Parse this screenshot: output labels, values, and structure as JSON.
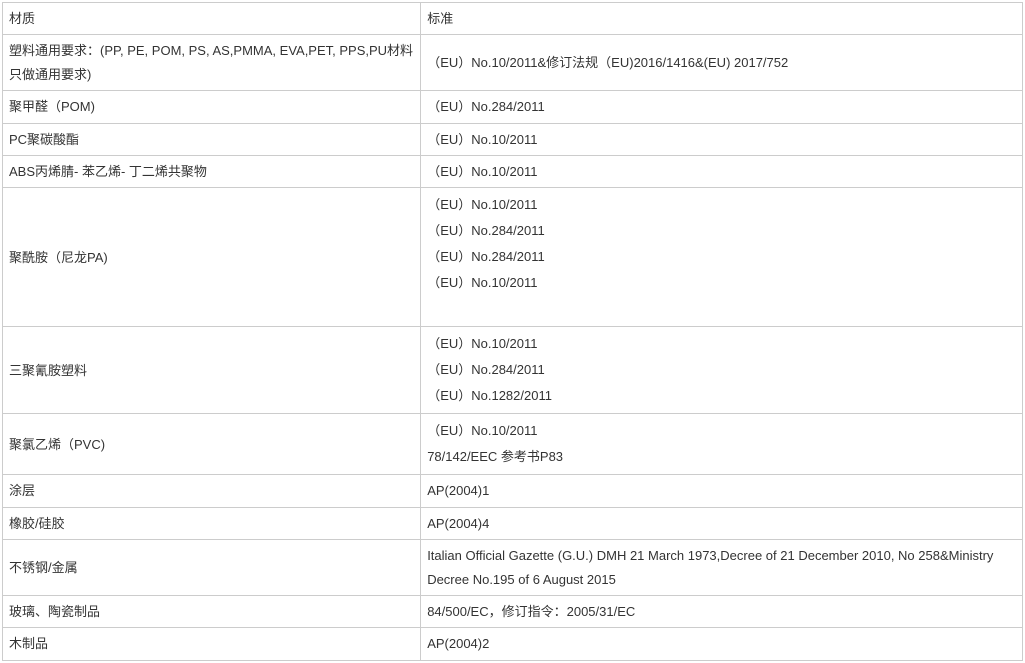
{
  "table": {
    "columns": {
      "material_header": "材质",
      "standard_header": "标准"
    },
    "col_widths": {
      "material": "41%",
      "standard": "59%"
    },
    "colors": {
      "border": "#cccccc",
      "text": "#333333",
      "background": "#ffffff"
    },
    "font": {
      "family": "Microsoft YaHei",
      "size": 13
    },
    "rows": [
      {
        "material": "塑料通用要求：(PP, PE, POM, PS, AS,PMMA, EVA,PET, PPS,PU材料只做通用要求)",
        "standard": " （EU）No.10/2011&修订法规（EU)2016/1416&(EU) 2017/752"
      },
      {
        "material": "聚甲醛（POM)",
        "standard": " （EU）No.284/2011"
      },
      {
        "material": "PC聚碳酸酯",
        "standard": " （EU）No.10/2011"
      },
      {
        "material": "ABS丙烯腈- 苯乙烯- 丁二烯共聚物",
        "standard": " （EU）No.10/2011"
      },
      {
        "material": "聚酰胺（尼龙PA)",
        "standard_lines": [
          " （EU）No.10/2011",
          " （EU）No.284/2011",
          " （EU）No.284/2011",
          " （EU）No.10/2011",
          ""
        ]
      },
      {
        "material": "三聚氰胺塑料",
        "standard_lines": [
          " （EU）No.10/2011",
          " （EU）No.284/2011",
          " （EU）No.1282/2011"
        ]
      },
      {
        "material": "聚氯乙烯（PVC)",
        "standard_lines": [
          " （EU）No.10/2011",
          "78/142/EEC  参考书P83"
        ]
      },
      {
        "material": "涂层",
        "standard": "AP(2004)1"
      },
      {
        "material": "橡胶/硅胶",
        "standard": " AP(2004)4"
      },
      {
        "material": "不锈钢/金属",
        "standard": "Italian Official Gazette (G.U.) DMH 21   March 1973,Decree of 21 December 2010, No 258&Ministry Decree No.195 of 6   August 2015"
      },
      {
        "material": "玻璃、陶瓷制品",
        "standard": "84/500/EC，修订指令：2005/31/EC"
      },
      {
        "material": "木制品",
        "standard": "AP(2004)2"
      }
    ]
  }
}
